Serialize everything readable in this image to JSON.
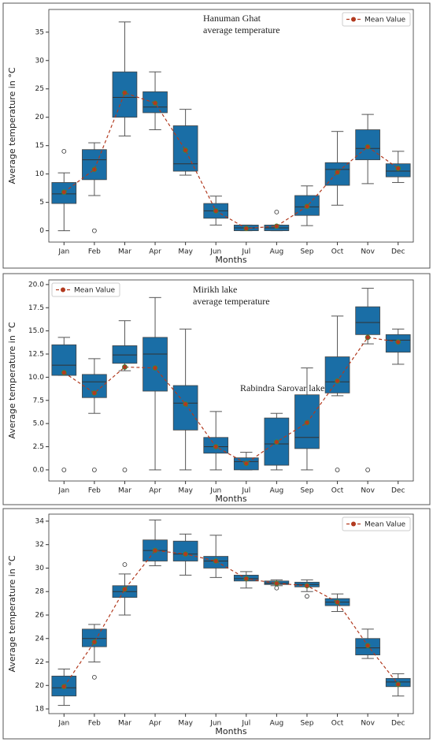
{
  "chart_data": [
    {
      "type": "box",
      "title": "Hanuman Ghat",
      "subtitle": "average temperature",
      "xlabel": "Months",
      "ylabel": "Average temperature in °C",
      "categories": [
        "Jan",
        "Feb",
        "Mar",
        "Apr",
        "May",
        "Jun",
        "Jul",
        "Aug",
        "Sep",
        "Oct",
        "Nov",
        "Dec"
      ],
      "box_color": "#1a6ea6",
      "boxes": [
        {
          "low": 0,
          "q1": 4.8,
          "median": 6.5,
          "q3": 8.5,
          "high": 10.2,
          "fliers": [
            14
          ]
        },
        {
          "low": 6.2,
          "q1": 9,
          "median": 12.5,
          "q3": 14.3,
          "high": 15.5,
          "fliers": [
            0
          ]
        },
        {
          "low": 16.7,
          "q1": 20,
          "median": 23.5,
          "q3": 28,
          "high": 36.8
        },
        {
          "low": 17.8,
          "q1": 20.8,
          "median": 21.8,
          "q3": 24.5,
          "high": 28
        },
        {
          "low": 9.8,
          "q1": 10.5,
          "median": 11.8,
          "q3": 18.5,
          "high": 21.4
        },
        {
          "low": 1,
          "q1": 2.2,
          "median": 3.5,
          "q3": 4.8,
          "high": 6.1
        },
        {
          "low": 0,
          "q1": 0,
          "median": 0.5,
          "q3": 1,
          "high": 1
        },
        {
          "low": 0,
          "q1": 0,
          "median": 0.5,
          "q3": 1,
          "high": 1,
          "fliers": [
            3.3
          ]
        },
        {
          "low": 0.9,
          "q1": 2.7,
          "median": 4.2,
          "q3": 6.2,
          "high": 7.9
        },
        {
          "low": 4.5,
          "q1": 8,
          "median": 10.8,
          "q3": 12,
          "high": 17.5
        },
        {
          "low": 8.3,
          "q1": 12.5,
          "median": 14.5,
          "q3": 17.8,
          "high": 20.5
        },
        {
          "low": 8.5,
          "q1": 9.5,
          "median": 10.5,
          "q3": 11.8,
          "high": 14
        }
      ],
      "series": [
        {
          "name": "Mean Value",
          "color": "#b23a1f",
          "values": [
            6.8,
            10.8,
            24.3,
            22.5,
            14.2,
            3.5,
            0.4,
            0.8,
            4.3,
            10.3,
            14.8,
            11
          ]
        }
      ],
      "ylim": [
        -2,
        39
      ],
      "yticks": [
        0,
        5,
        10,
        15,
        20,
        25,
        30,
        35
      ],
      "legend": "upper right"
    },
    {
      "type": "box",
      "title": "Mirikh lake",
      "subtitle": "average temperature",
      "annotation": "Rabindra Sarovar lake",
      "xlabel": "Months",
      "ylabel": "Average temperature in °C",
      "categories": [
        "Jan",
        "Feb",
        "Mar",
        "Apr",
        "May",
        "Jun",
        "Jul",
        "Aug",
        "Sep",
        "Oct",
        "Nov",
        "Dec"
      ],
      "box_color": "#1a6ea6",
      "boxes": [
        {
          "low": 10.2,
          "q1": 10.2,
          "median": 11.3,
          "q3": 13.5,
          "high": 14.3,
          "fliers": [
            0
          ]
        },
        {
          "low": 6.1,
          "q1": 7.8,
          "median": 9.5,
          "q3": 10.3,
          "high": 12,
          "fliers": [
            0
          ]
        },
        {
          "low": 10.7,
          "q1": 11.5,
          "median": 12.4,
          "q3": 13.4,
          "high": 16.1,
          "fliers": [
            0
          ]
        },
        {
          "low": 0,
          "q1": 8.5,
          "median": 12.5,
          "q3": 14.3,
          "high": 18.6
        },
        {
          "low": 0,
          "q1": 4.3,
          "median": 7.2,
          "q3": 9.1,
          "high": 15.2
        },
        {
          "low": 0,
          "q1": 1.8,
          "median": 2.5,
          "q3": 3.5,
          "high": 6.3
        },
        {
          "low": 0,
          "q1": 0,
          "median": 0.9,
          "q3": 1.3,
          "high": 1.9
        },
        {
          "low": 0,
          "q1": 0.5,
          "median": 2.8,
          "q3": 5.6,
          "high": 6.1
        },
        {
          "low": 0,
          "q1": 2.3,
          "median": 3.5,
          "q3": 8.1,
          "high": 11
        },
        {
          "low": 8,
          "q1": 8.3,
          "median": 9.5,
          "q3": 12.2,
          "high": 16.6,
          "fliers": [
            0
          ]
        },
        {
          "low": 13.6,
          "q1": 14.6,
          "median": 15.9,
          "q3": 17.6,
          "high": 19.6,
          "fliers": [
            0
          ]
        },
        {
          "low": 11.4,
          "q1": 12.7,
          "median": 14,
          "q3": 14.6,
          "high": 15.2
        }
      ],
      "series": [
        {
          "name": "Mean Value",
          "color": "#b23a1f",
          "values": [
            10.5,
            8.3,
            11.1,
            11,
            7.1,
            2.5,
            0.7,
            3,
            5.1,
            9.6,
            14.3,
            13.8
          ]
        }
      ],
      "ylim": [
        -1.2,
        20.5
      ],
      "yticks": [
        {
          "value": 0,
          "label": "0.0"
        },
        2.5,
        {
          "value": 5,
          "label": "5.0"
        },
        7.5,
        {
          "value": 10,
          "label": "10.0"
        },
        12.5,
        {
          "value": 15,
          "label": "15.0"
        },
        17.5,
        {
          "value": 20,
          "label": "20.0"
        }
      ],
      "legend": "upper left"
    },
    {
      "type": "box",
      "xlabel": "Months",
      "ylabel": "Average temperature in °C",
      "categories": [
        "Jan",
        "Feb",
        "Mar",
        "Apr",
        "May",
        "Jun",
        "Jul",
        "Aug",
        "Sep",
        "Oct",
        "Nov",
        "Dec"
      ],
      "box_color": "#1a6ea6",
      "boxes": [
        {
          "low": 18.3,
          "q1": 19.1,
          "median": 19.8,
          "q3": 20.8,
          "high": 21.4
        },
        {
          "low": 22,
          "q1": 23.3,
          "median": 24,
          "q3": 24.8,
          "high": 25.2,
          "fliers": [
            20.7
          ]
        },
        {
          "low": 26,
          "q1": 27.5,
          "median": 28,
          "q3": 28.5,
          "high": 29.5,
          "fliers": [
            30.3
          ]
        },
        {
          "low": 30.2,
          "q1": 30.6,
          "median": 31.5,
          "q3": 32.4,
          "high": 34.1
        },
        {
          "low": 29.4,
          "q1": 30.6,
          "median": 31.2,
          "q3": 32.3,
          "high": 32.9
        },
        {
          "low": 29.2,
          "q1": 30,
          "median": 30.6,
          "q3": 31,
          "high": 32.8
        },
        {
          "low": 28.3,
          "q1": 28.9,
          "median": 29.1,
          "q3": 29.4,
          "high": 29.7
        },
        {
          "low": 28.5,
          "q1": 28.6,
          "median": 28.7,
          "q3": 28.9,
          "high": 29,
          "fliers": [
            28.3
          ]
        },
        {
          "low": 28,
          "q1": 28.4,
          "median": 28.6,
          "q3": 28.8,
          "high": 29,
          "fliers": [
            27.6
          ]
        },
        {
          "low": 26.3,
          "q1": 26.8,
          "median": 27.1,
          "q3": 27.4,
          "high": 27.8
        },
        {
          "low": 22.3,
          "q1": 22.6,
          "median": 23.2,
          "q3": 24,
          "high": 24.8
        },
        {
          "low": 19.1,
          "q1": 19.9,
          "median": 20.3,
          "q3": 20.6,
          "high": 21
        }
      ],
      "series": [
        {
          "name": "Mean Value",
          "color": "#b23a1f",
          "values": [
            19.9,
            23.7,
            28.2,
            31.5,
            31.2,
            30.6,
            29.1,
            28.7,
            28.5,
            27.1,
            23.4,
            20.1
          ]
        }
      ],
      "ylim": [
        17.6,
        34.6
      ],
      "yticks": [
        18,
        20,
        22,
        24,
        26,
        28,
        30,
        32,
        34
      ],
      "legend": "upper right"
    }
  ]
}
